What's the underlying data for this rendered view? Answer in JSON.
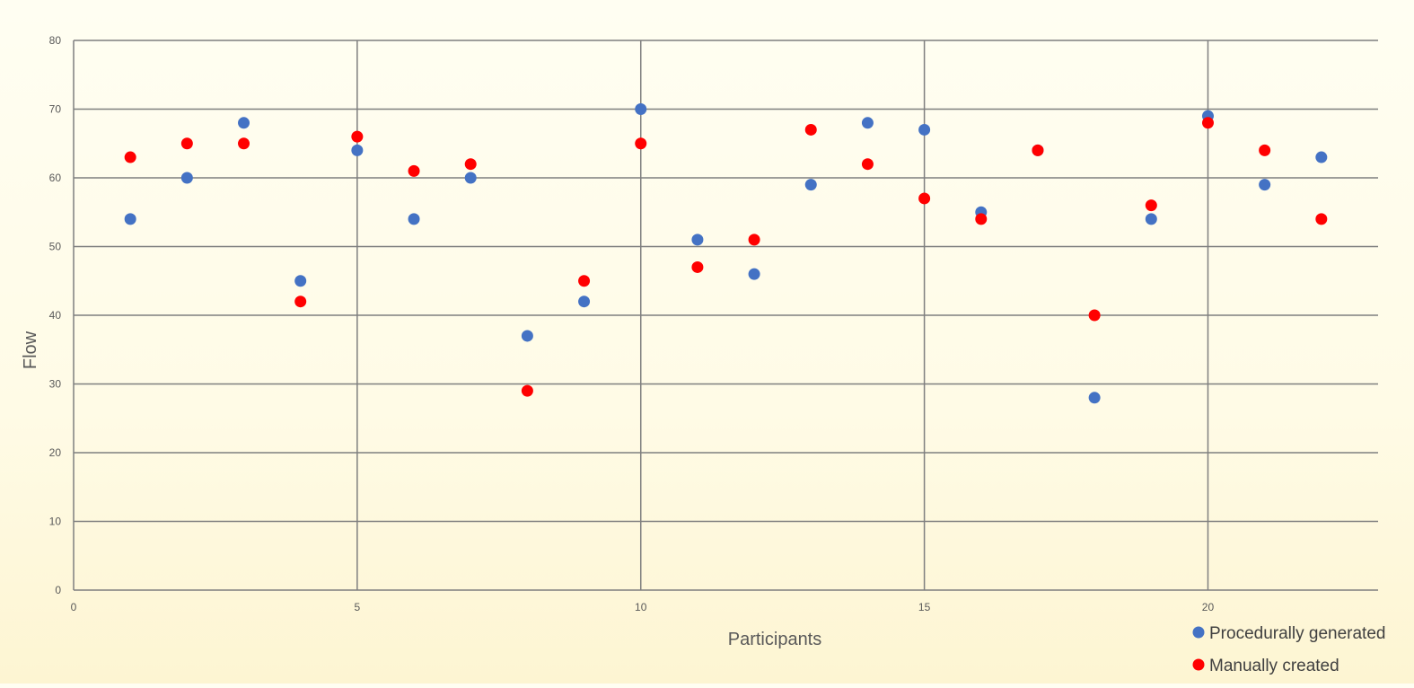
{
  "chart_data": {
    "type": "scatter",
    "title": "",
    "xlabel": "Participants",
    "ylabel": "Flow",
    "xlim": [
      0,
      23
    ],
    "ylim": [
      0,
      80
    ],
    "x_ticks": [
      0,
      5,
      10,
      15,
      20
    ],
    "y_ticks": [
      0,
      10,
      20,
      30,
      40,
      50,
      60,
      70,
      80
    ],
    "grid": {
      "horizontal": true,
      "vertical": true,
      "vertical_step": 5,
      "horizontal_step": 10
    },
    "legend_position": "bottom-right",
    "series": [
      {
        "name": "Procedurally generated",
        "color": "#4472c4",
        "x": [
          1,
          2,
          3,
          4,
          5,
          6,
          7,
          8,
          9,
          10,
          11,
          12,
          13,
          14,
          15,
          16,
          17,
          18,
          19,
          20,
          21,
          22
        ],
        "y": [
          54,
          60,
          68,
          45,
          64,
          54,
          60,
          37,
          42,
          70,
          51,
          46,
          59,
          68,
          67,
          55,
          64,
          28,
          54,
          69,
          59,
          63
        ]
      },
      {
        "name": "Manually created",
        "color": "#ff0000",
        "x": [
          1,
          2,
          3,
          4,
          5,
          6,
          7,
          8,
          9,
          10,
          11,
          12,
          13,
          14,
          15,
          16,
          17,
          18,
          19,
          20,
          21,
          22
        ],
        "y": [
          63,
          65,
          65,
          42,
          66,
          61,
          62,
          29,
          45,
          65,
          47,
          51,
          67,
          62,
          57,
          54,
          64,
          40,
          56,
          68,
          64,
          54
        ]
      }
    ]
  }
}
